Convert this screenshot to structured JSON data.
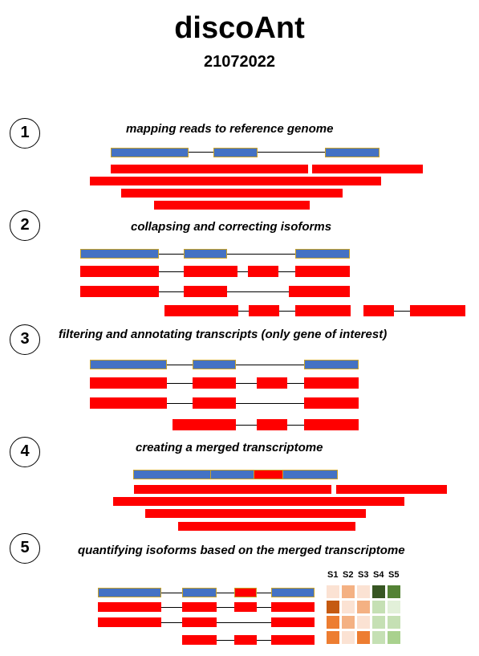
{
  "title": "discoAnt",
  "subtitle": "21072022",
  "steps": [
    {
      "number": "1",
      "label": "mapping reads to reference genome"
    },
    {
      "number": "2",
      "label": "collapsing and correcting isoforms"
    },
    {
      "number": "3",
      "label": "filtering and annotating transcripts (only gene of interest)"
    },
    {
      "number": "4",
      "label": "creating a merged transcriptome"
    },
    {
      "number": "5",
      "label": "quantifying isoforms based on the merged transcriptome"
    }
  ],
  "heatmap": {
    "samples": [
      "S1",
      "S2",
      "S3",
      "S4",
      "S5"
    ],
    "colors": {
      "reference_exon": "#4472c4",
      "isoform_exon": "#ff0000",
      "exon_border": "#c9a227"
    },
    "cells": [
      [
        "#fbe2d3",
        "#f4b183",
        "#fbe2d3",
        "#375623",
        "#548235"
      ],
      [
        "#c55a11",
        "#fbe2d3",
        "#f4b183",
        "#c5e0b4",
        "#e2f0d9"
      ],
      [
        "#ed7d31",
        "#f4b183",
        "#fbe2d3",
        "#c5e0b4",
        "#c5e0b4"
      ],
      [
        "#ed7d31",
        "#fbe2d3",
        "#ed7d31",
        "#c5e0b4",
        "#a9d18e"
      ]
    ]
  }
}
